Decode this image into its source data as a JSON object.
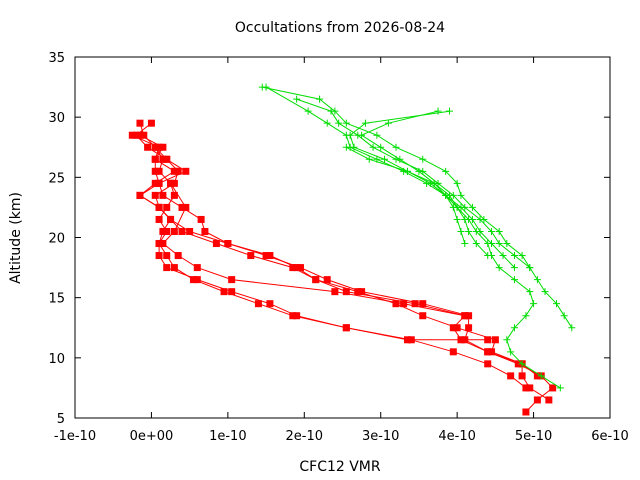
{
  "chart_data": {
    "type": "line",
    "title": "Occultations from 2026-08-24",
    "xlabel": "CFC12 VMR",
    "ylabel": "Altitude (km)",
    "xlim": [
      -1e-10,
      6e-10
    ],
    "ylim": [
      5,
      35
    ],
    "xticks": [
      "-1e-10",
      "0e+00",
      "1e-10",
      "2e-10",
      "3e-10",
      "4e-10",
      "5e-10",
      "6e-10"
    ],
    "yticks": [
      "5",
      "10",
      "15",
      "20",
      "25",
      "30",
      "35"
    ],
    "grid": false,
    "legend": "none",
    "series": [
      {
        "color": "#ff0000",
        "marker": "square",
        "points": [
          [
            4.9e-10,
            5.5
          ],
          [
            5.05e-10,
            6.5
          ],
          [
            5.25e-10,
            7.5
          ],
          [
            5.1e-10,
            8.5
          ],
          [
            4.8e-10,
            9.5
          ],
          [
            4.4e-10,
            10.5
          ],
          [
            4.1e-10,
            11.5
          ],
          [
            4.15e-10,
            12.5
          ],
          [
            4.15e-10,
            13.5
          ],
          [
            3.55e-10,
            14.5
          ],
          [
            2.75e-10,
            15.5
          ],
          [
            2.3e-10,
            16.5
          ],
          [
            1.95e-10,
            17.5
          ],
          [
            1.5e-10,
            18.5
          ],
          [
            1e-10,
            19.5
          ],
          [
            7e-11,
            20.5
          ],
          [
            6.5e-11,
            21.5
          ],
          [
            4e-11,
            22.5
          ],
          [
            1.5e-11,
            23.5
          ],
          [
            1e-11,
            24.5
          ],
          [
            5e-12,
            25.5
          ],
          [
            5e-12,
            26.5
          ],
          [
            1e-11,
            27.5
          ],
          [
            -2.5e-11,
            28.5
          ]
        ]
      },
      {
        "color": "#ff0000",
        "marker": "square",
        "points": [
          [
            5.2e-10,
            6.5
          ],
          [
            4.95e-10,
            7.5
          ],
          [
            4.85e-10,
            8.5
          ],
          [
            4.85e-10,
            9.5
          ],
          [
            4.45e-10,
            10.5
          ],
          [
            4.5e-10,
            11.5
          ],
          [
            4e-10,
            12.5
          ],
          [
            3.55e-10,
            13.5
          ],
          [
            3.2e-10,
            14.5
          ],
          [
            2.7e-10,
            15.5
          ],
          [
            2.15e-10,
            16.5
          ],
          [
            1.9e-10,
            17.5
          ],
          [
            1.55e-10,
            18.5
          ],
          [
            1e-10,
            19.5
          ],
          [
            5e-11,
            20.5
          ],
          [
            2.5e-11,
            21.5
          ],
          [
            1e-11,
            22.5
          ],
          [
            5e-12,
            23.5
          ],
          [
            3e-11,
            24.5
          ],
          [
            3.5e-11,
            25.5
          ],
          [
            2e-11,
            26.5
          ],
          [
            -5e-12,
            27.5
          ],
          [
            -2e-11,
            28.5
          ],
          [
            0.0,
            29.5
          ]
        ]
      },
      {
        "color": "#ff0000",
        "marker": "square",
        "points": [
          [
            5.05e-10,
            8.5
          ],
          [
            4.85e-10,
            9.5
          ],
          [
            4.4e-10,
            10.5
          ],
          [
            4.05e-10,
            11.5
          ],
          [
            3.95e-10,
            12.5
          ],
          [
            4.1e-10,
            13.5
          ],
          [
            3.45e-10,
            14.5
          ],
          [
            2.55e-10,
            15.5
          ],
          [
            2.15e-10,
            16.5
          ],
          [
            1.85e-10,
            17.5
          ],
          [
            1.3e-10,
            18.5
          ],
          [
            8.5e-11,
            19.5
          ],
          [
            4e-11,
            20.5
          ],
          [
            2.5e-11,
            21.5
          ],
          [
            1e-11,
            22.5
          ],
          [
            -1.5e-11,
            23.5
          ],
          [
            1e-11,
            24.5
          ],
          [
            4.5e-11,
            25.5
          ],
          [
            2e-11,
            26.5
          ],
          [
            5e-12,
            27.5
          ],
          [
            -1e-11,
            28.5
          ],
          [
            -1.5e-11,
            29.5
          ]
        ]
      },
      {
        "color": "#ff0000",
        "marker": "square",
        "points": [
          [
            4.9e-10,
            7.5
          ],
          [
            4.7e-10,
            8.5
          ],
          [
            4.4e-10,
            9.5
          ],
          [
            3.95e-10,
            10.5
          ],
          [
            3.4e-10,
            11.5
          ],
          [
            2.55e-10,
            12.5
          ],
          [
            1.85e-10,
            13.5
          ],
          [
            1.4e-10,
            14.5
          ],
          [
            9.5e-11,
            15.5
          ],
          [
            5.5e-11,
            16.5
          ],
          [
            3e-11,
            17.5
          ],
          [
            2e-11,
            18.5
          ],
          [
            1e-11,
            19.5
          ],
          [
            1.5e-11,
            20.5
          ],
          [
            2.5e-11,
            21.5
          ],
          [
            1e-11,
            22.5
          ],
          [
            -1.5e-11,
            23.5
          ],
          [
            5e-12,
            24.5
          ],
          [
            3e-11,
            25.5
          ],
          [
            5e-12,
            26.5
          ],
          [
            1.5e-11,
            27.5
          ],
          [
            -1.5e-11,
            28.5
          ]
        ]
      },
      {
        "color": "#ff0000",
        "marker": "square",
        "points": [
          [
            4.4e-10,
            11.5
          ],
          [
            3.35e-10,
            11.5
          ],
          [
            2.55e-10,
            12.5
          ],
          [
            1.9e-10,
            13.5
          ],
          [
            1.55e-10,
            14.5
          ],
          [
            1.05e-10,
            15.5
          ],
          [
            6e-11,
            16.5
          ],
          [
            2e-11,
            17.5
          ],
          [
            1e-11,
            18.5
          ],
          [
            1e-11,
            19.5
          ],
          [
            2e-11,
            20.5
          ],
          [
            1e-11,
            21.5
          ],
          [
            2e-11,
            22.5
          ],
          [
            3e-11,
            23.5
          ],
          [
            2.5e-11,
            24.5
          ],
          [
            1e-11,
            25.5
          ],
          [
            1.5e-11,
            26.5
          ],
          [
            5e-12,
            27.5
          ]
        ]
      },
      {
        "color": "#ff0000",
        "marker": "square",
        "points": [
          [
            4.1e-10,
            13.5
          ],
          [
            3.3e-10,
            14.5
          ],
          [
            2.4e-10,
            15.5
          ],
          [
            1.05e-10,
            16.5
          ],
          [
            6e-11,
            17.5
          ],
          [
            3.5e-11,
            18.5
          ],
          [
            1.5e-11,
            19.5
          ],
          [
            3e-11,
            20.5
          ],
          [
            4.5e-11,
            22.5
          ],
          [
            2.5e-11,
            24.5
          ]
        ]
      },
      {
        "color": "#00dd00",
        "marker": "plus",
        "points": [
          [
            5.5e-10,
            12.5
          ],
          [
            5.4e-10,
            13.5
          ],
          [
            5.3e-10,
            14.5
          ],
          [
            5.15e-10,
            15.5
          ],
          [
            5.05e-10,
            16.5
          ],
          [
            4.95e-10,
            17.5
          ],
          [
            4.85e-10,
            18.5
          ],
          [
            4.65e-10,
            19.5
          ],
          [
            4.55e-10,
            20.5
          ],
          [
            4.35e-10,
            21.5
          ],
          [
            4.2e-10,
            22.5
          ],
          [
            4.05e-10,
            23.5
          ],
          [
            4e-10,
            24.5
          ],
          [
            3.85e-10,
            25.5
          ],
          [
            3.55e-10,
            26.5
          ],
          [
            3.2e-10,
            27.5
          ],
          [
            2.95e-10,
            28.5
          ],
          [
            2.55e-10,
            29.5
          ],
          [
            2.4e-10,
            30.5
          ],
          [
            2.2e-10,
            31.5
          ],
          [
            1.45e-10,
            32.5
          ]
        ]
      },
      {
        "color": "#00dd00",
        "marker": "plus",
        "points": [
          [
            5.35e-10,
            7.5
          ],
          [
            5.1e-10,
            8.5
          ],
          [
            4.85e-10,
            9.5
          ],
          [
            4.7e-10,
            10.5
          ],
          [
            4.65e-10,
            11.5
          ],
          [
            4.75e-10,
            12.5
          ],
          [
            4.9e-10,
            13.5
          ],
          [
            5e-10,
            14.5
          ],
          [
            4.95e-10,
            15.5
          ],
          [
            4.75e-10,
            16.5
          ],
          [
            4.55e-10,
            17.5
          ],
          [
            4.45e-10,
            18.5
          ],
          [
            4.4e-10,
            19.5
          ],
          [
            4.25e-10,
            20.5
          ],
          [
            4.15e-10,
            21.5
          ],
          [
            4e-10,
            22.5
          ],
          [
            3.9e-10,
            23.5
          ],
          [
            3.7e-10,
            24.5
          ],
          [
            3.5e-10,
            25.5
          ],
          [
            3.25e-10,
            26.5
          ],
          [
            3e-10,
            27.5
          ],
          [
            2.75e-10,
            28.5
          ],
          [
            3.1e-10,
            29.5
          ],
          [
            3.75e-10,
            30.5
          ]
        ]
      },
      {
        "color": "#00dd00",
        "marker": "plus",
        "points": [
          [
            4.95e-10,
            17.5
          ],
          [
            4.75e-10,
            18.5
          ],
          [
            4.55e-10,
            19.5
          ],
          [
            4.45e-10,
            20.5
          ],
          [
            4.3e-10,
            21.5
          ],
          [
            4.1e-10,
            22.5
          ],
          [
            3.95e-10,
            23.5
          ],
          [
            3.75e-10,
            24.5
          ],
          [
            3.55e-10,
            25.5
          ],
          [
            3.2e-10,
            26.5
          ],
          [
            2.9e-10,
            27.5
          ],
          [
            2.7e-10,
            28.5
          ],
          [
            2.45e-10,
            29.5
          ],
          [
            2.35e-10,
            30.5
          ],
          [
            1.9e-10,
            31.5
          ]
        ]
      },
      {
        "color": "#00dd00",
        "marker": "plus",
        "points": [
          [
            4.75e-10,
            17.5
          ],
          [
            4.6e-10,
            18.5
          ],
          [
            4.45e-10,
            19.5
          ],
          [
            4.3e-10,
            20.5
          ],
          [
            4.2e-10,
            21.5
          ],
          [
            4.05e-10,
            22.5
          ],
          [
            3.85e-10,
            23.5
          ],
          [
            3.65e-10,
            24.5
          ],
          [
            3.35e-10,
            25.5
          ],
          [
            3.05e-10,
            26.5
          ],
          [
            2.65e-10,
            27.5
          ],
          [
            2.6e-10,
            28.5
          ],
          [
            2.8e-10,
            29.5
          ],
          [
            3.9e-10,
            30.5
          ]
        ]
      },
      {
        "color": "#00dd00",
        "marker": "plus",
        "points": [
          [
            4.1e-10,
            19.5
          ],
          [
            4.05e-10,
            20.5
          ],
          [
            4e-10,
            21.5
          ],
          [
            3.95e-10,
            22.5
          ],
          [
            3.85e-10,
            23.5
          ],
          [
            3.6e-10,
            24.5
          ],
          [
            3.3e-10,
            25.5
          ],
          [
            2.95e-10,
            26.5
          ],
          [
            2.6e-10,
            27.5
          ],
          [
            2.55e-10,
            28.5
          ],
          [
            2.3e-10,
            29.5
          ],
          [
            2.05e-10,
            30.5
          ],
          [
            1.5e-10,
            32.5
          ]
        ]
      },
      {
        "color": "#00dd00",
        "marker": "plus",
        "points": [
          [
            4.4e-10,
            18.5
          ],
          [
            4.25e-10,
            19.5
          ],
          [
            4.15e-10,
            20.5
          ],
          [
            4.1e-10,
            21.5
          ],
          [
            4e-10,
            22.5
          ],
          [
            3.85e-10,
            23.5
          ],
          [
            3.7e-10,
            24.5
          ],
          [
            3.35e-10,
            25.5
          ],
          [
            2.85e-10,
            26.5
          ],
          [
            2.55e-10,
            27.5
          ]
        ]
      }
    ]
  }
}
